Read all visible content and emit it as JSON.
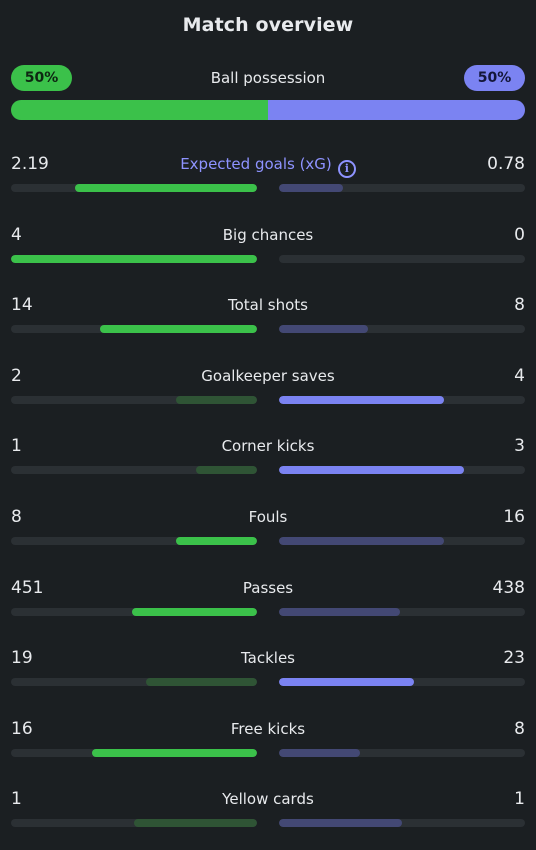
{
  "title": "Match overview",
  "possession": {
    "label": "Ball possession",
    "home": "50%",
    "away": "50%",
    "home_fraction": 0.5
  },
  "colors": {
    "home_strong": "#3bc14a",
    "home_weak": "#2f5435",
    "away_strong": "#7b83f2",
    "away_weak": "#434874",
    "track": "#2b3034",
    "accent_label": "#8e93ff"
  },
  "stats": [
    {
      "label": "Expected goals (xG)",
      "home": "2.19",
      "away": "0.78",
      "home_fill": 0.74,
      "away_fill": 0.26,
      "winner": "home",
      "accent": true,
      "info_icon": "info-icon"
    },
    {
      "label": "Big chances",
      "home": "4",
      "away": "0",
      "home_fill": 1.0,
      "away_fill": 0.0,
      "winner": "home"
    },
    {
      "label": "Total shots",
      "home": "14",
      "away": "8",
      "home_fill": 0.64,
      "away_fill": 0.36,
      "winner": "home"
    },
    {
      "label": "Goalkeeper saves",
      "home": "2",
      "away": "4",
      "home_fill": 0.33,
      "away_fill": 0.67,
      "winner": "away"
    },
    {
      "label": "Corner kicks",
      "home": "1",
      "away": "3",
      "home_fill": 0.25,
      "away_fill": 0.75,
      "winner": "away"
    },
    {
      "label": "Fouls",
      "home": "8",
      "away": "16",
      "home_fill": 0.33,
      "away_fill": 0.67,
      "winner": "home"
    },
    {
      "label": "Passes",
      "home": "451",
      "away": "438",
      "home_fill": 0.51,
      "away_fill": 0.49,
      "winner": "home"
    },
    {
      "label": "Tackles",
      "home": "19",
      "away": "23",
      "home_fill": 0.45,
      "away_fill": 0.55,
      "winner": "away"
    },
    {
      "label": "Free kicks",
      "home": "16",
      "away": "8",
      "home_fill": 0.67,
      "away_fill": 0.33,
      "winner": "home"
    },
    {
      "label": "Yellow cards",
      "home": "1",
      "away": "1",
      "home_fill": 0.5,
      "away_fill": 0.5,
      "winner": "none"
    }
  ]
}
